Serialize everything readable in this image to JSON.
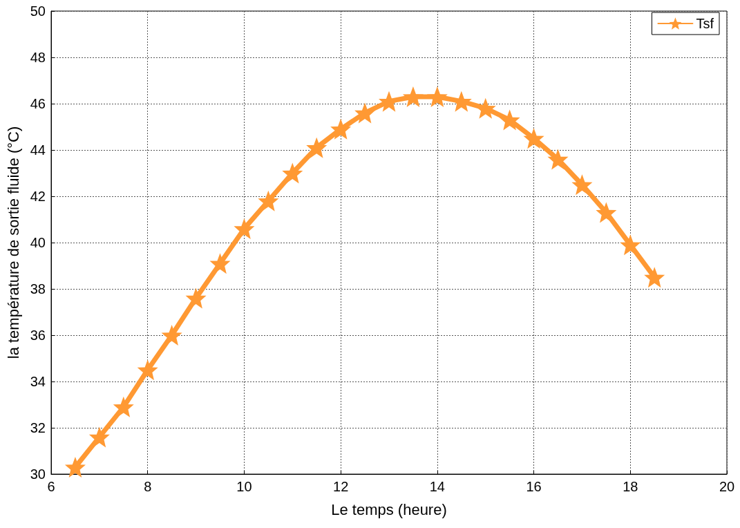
{
  "chart_data": {
    "type": "line",
    "xlabel": "Le temps (heure)",
    "ylabel": "la température de sortie fluide (°C)",
    "x": [
      6.5,
      7,
      7.5,
      8,
      8.5,
      9,
      9.5,
      10,
      10.5,
      11,
      11.5,
      12,
      12.5,
      13,
      13.5,
      14,
      14.5,
      15,
      15.5,
      16,
      16.5,
      17,
      17.5,
      18,
      18.5
    ],
    "series": [
      {
        "name": "Tsf",
        "color": "#ff9933",
        "values": [
          30.3,
          31.6,
          32.9,
          34.5,
          36.0,
          37.6,
          39.1,
          40.6,
          41.8,
          43.0,
          44.1,
          44.9,
          45.6,
          46.1,
          46.3,
          46.3,
          46.1,
          45.8,
          45.3,
          44.5,
          43.6,
          42.5,
          41.3,
          39.9,
          38.5
        ]
      }
    ],
    "xlim": [
      6,
      20
    ],
    "xticks": [
      6,
      8,
      10,
      12,
      14,
      16,
      18,
      20
    ],
    "ylim": [
      30,
      50
    ],
    "yticks": [
      30,
      32,
      34,
      36,
      38,
      40,
      42,
      44,
      46,
      48,
      50
    ],
    "grid": true,
    "legend": "top right",
    "marker": "star",
    "line_style": "solid"
  }
}
